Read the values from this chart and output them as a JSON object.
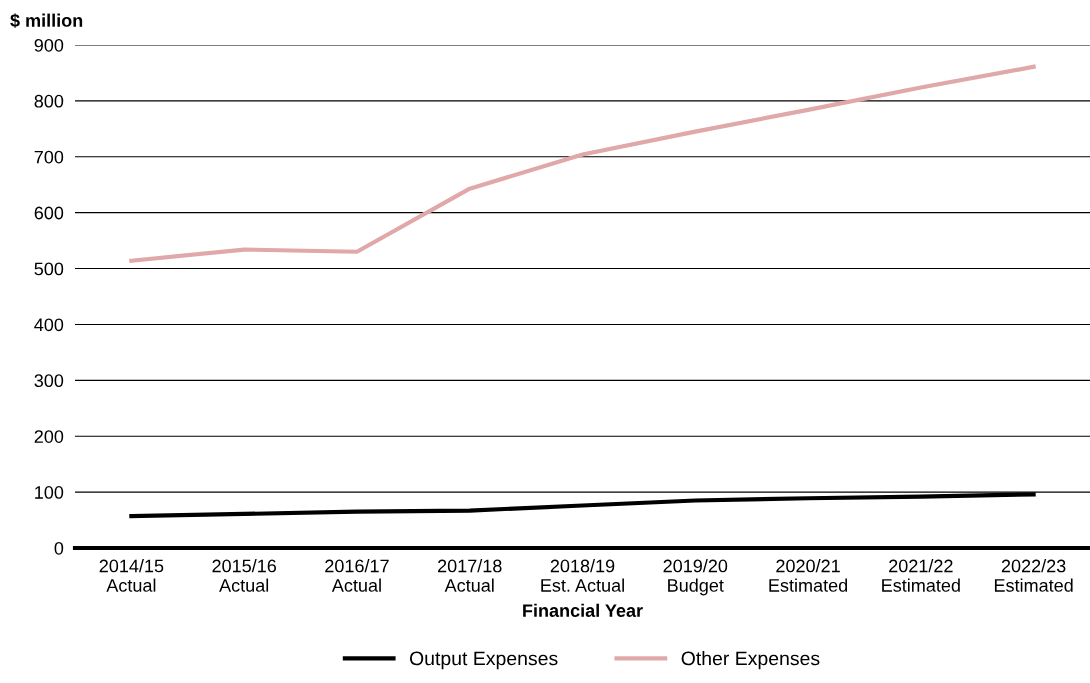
{
  "chart_data": {
    "type": "line",
    "ylabel": "$ million",
    "xlabel": "Financial Year",
    "categories": [
      "2014/15\nActual",
      "2015/16\nActual",
      "2016/17\nActual",
      "2017/18\nActual",
      "2018/19\nEst. Actual",
      "2019/20\nBudget",
      "2020/21\nEstimated",
      "2021/22\nEstimated",
      "2022/23\nEstimated"
    ],
    "series": [
      {
        "name": "Output Expenses",
        "color": "#000000",
        "values": [
          57,
          61,
          65,
          67,
          76,
          85,
          89,
          92,
          96
        ]
      },
      {
        "name": "Other Expenses",
        "color": "#e0a8a8",
        "values": [
          514,
          534,
          530,
          643,
          704,
          745,
          784,
          824,
          861
        ]
      }
    ],
    "ylim": [
      0,
      900
    ],
    "yticks": [
      0,
      100,
      200,
      300,
      400,
      500,
      600,
      700,
      800,
      900
    ],
    "grid": "y",
    "legend": "bottom",
    "marker": "none",
    "line_style": "solid"
  }
}
